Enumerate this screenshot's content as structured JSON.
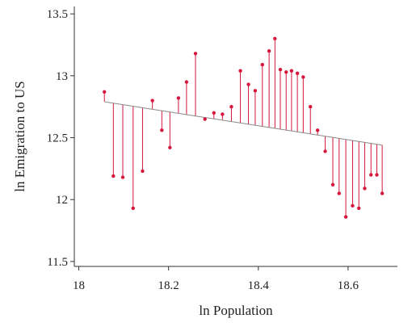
{
  "chart_data": {
    "type": "scatter",
    "xlabel": "ln Population",
    "ylabel": "ln Emigration to US",
    "xlim": [
      17.99,
      18.71
    ],
    "ylim": [
      11.46,
      13.56
    ],
    "xticks": [
      18,
      18.2,
      18.4,
      18.6
    ],
    "xtick_labels": [
      "18",
      "18.2",
      "18.4",
      "18.6"
    ],
    "yticks": [
      11.5,
      12,
      12.5,
      13,
      13.5
    ],
    "ytick_labels": [
      "11.5",
      "12",
      "12.5",
      "13",
      "13.5"
    ],
    "grid": false,
    "point_color": "#d6163c",
    "line_color": "#888888",
    "fit_line": {
      "x": [
        18.057,
        18.676
      ],
      "y": [
        12.79,
        12.44
      ]
    },
    "points": [
      {
        "x": 18.057,
        "y": 12.87
      },
      {
        "x": 18.077,
        "y": 12.19
      },
      {
        "x": 18.098,
        "y": 12.18
      },
      {
        "x": 18.121,
        "y": 11.93
      },
      {
        "x": 18.142,
        "y": 12.23
      },
      {
        "x": 18.164,
        "y": 12.8
      },
      {
        "x": 18.185,
        "y": 12.56
      },
      {
        "x": 18.203,
        "y": 12.42
      },
      {
        "x": 18.222,
        "y": 12.82
      },
      {
        "x": 18.24,
        "y": 12.95
      },
      {
        "x": 18.26,
        "y": 13.18
      },
      {
        "x": 18.281,
        "y": 12.65
      },
      {
        "x": 18.301,
        "y": 12.7
      },
      {
        "x": 18.32,
        "y": 12.69
      },
      {
        "x": 18.34,
        "y": 12.75
      },
      {
        "x": 18.36,
        "y": 13.04
      },
      {
        "x": 18.378,
        "y": 12.93
      },
      {
        "x": 18.393,
        "y": 12.88
      },
      {
        "x": 18.409,
        "y": 13.09
      },
      {
        "x": 18.424,
        "y": 13.2
      },
      {
        "x": 18.437,
        "y": 13.3
      },
      {
        "x": 18.449,
        "y": 13.05
      },
      {
        "x": 18.462,
        "y": 13.03
      },
      {
        "x": 18.474,
        "y": 13.04
      },
      {
        "x": 18.487,
        "y": 13.02
      },
      {
        "x": 18.5,
        "y": 12.99
      },
      {
        "x": 18.516,
        "y": 12.75
      },
      {
        "x": 18.532,
        "y": 12.56
      },
      {
        "x": 18.549,
        "y": 12.39
      },
      {
        "x": 18.566,
        "y": 12.12
      },
      {
        "x": 18.58,
        "y": 12.05
      },
      {
        "x": 18.595,
        "y": 11.86
      },
      {
        "x": 18.61,
        "y": 11.95
      },
      {
        "x": 18.624,
        "y": 11.93
      },
      {
        "x": 18.637,
        "y": 12.09
      },
      {
        "x": 18.651,
        "y": 12.2
      },
      {
        "x": 18.664,
        "y": 12.2
      },
      {
        "x": 18.676,
        "y": 12.05
      }
    ]
  }
}
